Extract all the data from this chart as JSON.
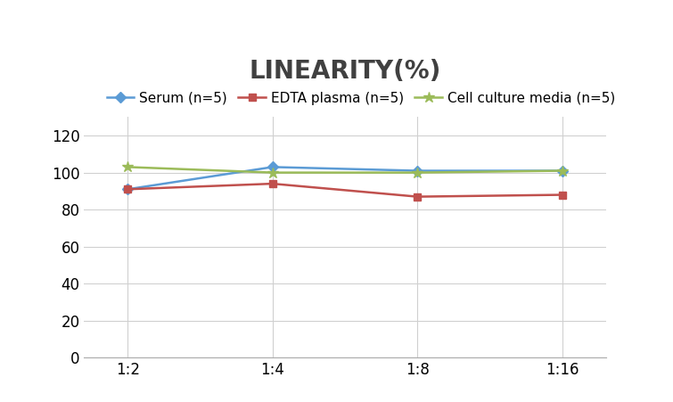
{
  "title": "LINEARITY(%)",
  "x_labels": [
    "1:2",
    "1:4",
    "1:8",
    "1:16"
  ],
  "x_positions": [
    0,
    1,
    2,
    3
  ],
  "series": [
    {
      "name": "Serum (n=5)",
      "values": [
        91,
        103,
        101,
        101
      ],
      "color": "#5B9BD5",
      "marker": "D",
      "marker_size": 6,
      "linewidth": 1.8
    },
    {
      "name": "EDTA plasma (n=5)",
      "values": [
        91,
        94,
        87,
        88
      ],
      "color": "#C0504D",
      "marker": "s",
      "marker_size": 6,
      "linewidth": 1.8
    },
    {
      "name": "Cell culture media (n=5)",
      "values": [
        103,
        100,
        100,
        101
      ],
      "color": "#9BBB59",
      "marker": "*",
      "marker_size": 9,
      "linewidth": 1.8
    }
  ],
  "ylim": [
    0,
    130
  ],
  "yticks": [
    0,
    20,
    40,
    60,
    80,
    100,
    120
  ],
  "title_fontsize": 20,
  "legend_fontsize": 11,
  "tick_fontsize": 12,
  "background_color": "#ffffff",
  "grid_color": "#d0d0d0"
}
